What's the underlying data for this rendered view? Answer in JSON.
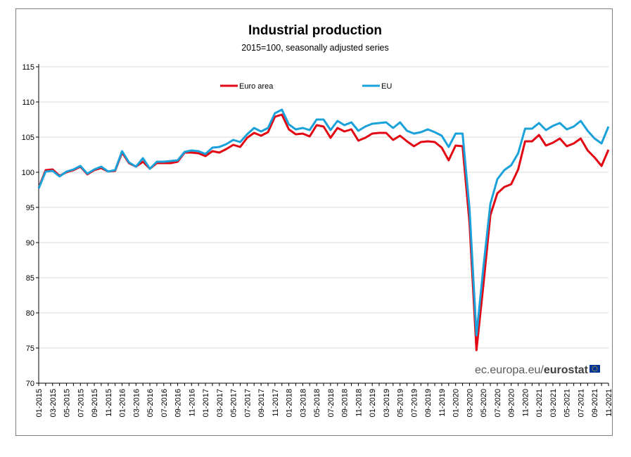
{
  "chart_data": {
    "type": "line",
    "title": "Industrial production",
    "subtitle": "2015=100, seasonally adjusted series",
    "xlabel": "",
    "ylabel": "",
    "ylim": [
      70,
      115
    ],
    "yticks": [
      70,
      75,
      80,
      85,
      90,
      95,
      100,
      105,
      110,
      115
    ],
    "grid": true,
    "legend": "top",
    "watermark_prefix": "ec.europa.eu/",
    "watermark_brand": "eurostat",
    "x_tick_labels": [
      "01-2015",
      "03-2015",
      "05-2015",
      "07-2015",
      "09-2015",
      "11-2015",
      "01-2016",
      "03-2016",
      "05-2016",
      "07-2016",
      "09-2016",
      "11-2016",
      "01-2017",
      "03-2017",
      "05-2017",
      "07-2017",
      "09-2017",
      "11-2017",
      "01-2018",
      "03-2018",
      "05-2018",
      "07-2018",
      "09-2018",
      "11-2018",
      "01-2019",
      "03-2019",
      "05-2019",
      "07-2019",
      "09-2019",
      "11-2019",
      "01-2020",
      "03-2020",
      "05-2020",
      "07-2020",
      "09-2020",
      "11-2020",
      "01-2021",
      "03-2021",
      "05-2021",
      "07-2021",
      "09-2021",
      "11-2021"
    ],
    "x_start": "01-2015",
    "x_count": 83,
    "series": [
      {
        "name": "Euro area",
        "color": "#e30613",
        "values": [
          97.8,
          100.3,
          100.4,
          99.5,
          100.0,
          100.3,
          100.8,
          99.7,
          100.3,
          100.6,
          100.1,
          100.2,
          102.8,
          101.3,
          100.8,
          101.5,
          100.5,
          101.3,
          101.3,
          101.3,
          101.5,
          102.8,
          102.8,
          102.7,
          102.3,
          103.0,
          102.8,
          103.3,
          103.9,
          103.6,
          104.9,
          105.6,
          105.2,
          105.7,
          107.9,
          108.2,
          106.1,
          105.4,
          105.5,
          105.1,
          106.7,
          106.5,
          104.9,
          106.3,
          105.8,
          106.1,
          104.5,
          104.9,
          105.5,
          105.6,
          105.6,
          104.6,
          105.2,
          104.4,
          103.7,
          104.3,
          104.4,
          104.3,
          103.5,
          101.7,
          103.8,
          103.7,
          92.8,
          74.7,
          84.0,
          93.9,
          97.0,
          97.9,
          98.3,
          100.4,
          104.4,
          104.4,
          105.3,
          103.8,
          104.2,
          104.8,
          103.7,
          104.1,
          104.8,
          103.1,
          102.1,
          100.9,
          103.2
        ]
      },
      {
        "name": "EU",
        "color": "#1aa1d9",
        "values": [
          97.7,
          100.1,
          100.2,
          99.4,
          100.1,
          100.4,
          100.9,
          99.8,
          100.4,
          100.8,
          100.1,
          100.3,
          103.0,
          101.4,
          100.8,
          102.0,
          100.5,
          101.5,
          101.5,
          101.6,
          101.7,
          102.9,
          103.1,
          103.0,
          102.6,
          103.5,
          103.6,
          104.0,
          104.6,
          104.3,
          105.4,
          106.3,
          105.8,
          106.3,
          108.4,
          108.9,
          106.8,
          106.1,
          106.3,
          106.0,
          107.5,
          107.5,
          106.0,
          107.3,
          106.7,
          107.1,
          105.9,
          106.5,
          106.9,
          107.0,
          107.1,
          106.3,
          107.1,
          105.9,
          105.5,
          105.7,
          106.1,
          105.7,
          105.2,
          103.6,
          105.5,
          105.5,
          94.8,
          76.8,
          86.5,
          95.5,
          99.0,
          100.3,
          101.0,
          102.7,
          106.2,
          106.2,
          107.0,
          106.0,
          106.6,
          107.0,
          106.1,
          106.5,
          107.3,
          105.9,
          104.8,
          104.1,
          106.5
        ]
      }
    ]
  }
}
